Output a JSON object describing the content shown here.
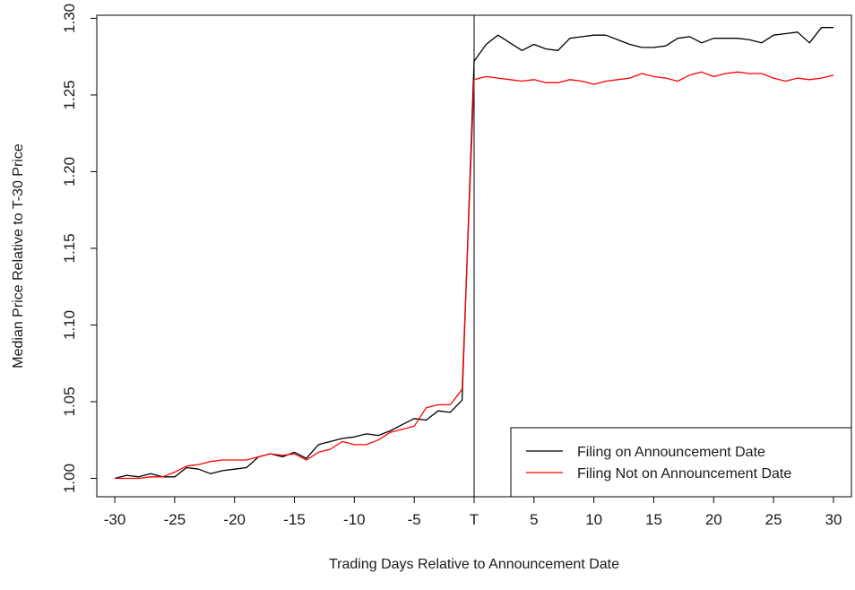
{
  "chart_data": {
    "type": "line",
    "xlabel": "Trading Days Relative to Announcement Date",
    "ylabel": "Median Price Relative to T-30 Price",
    "xlim": [
      -31.5,
      31.5
    ],
    "ylim": [
      0.988,
      1.302
    ],
    "x_ticks": [
      -30,
      -25,
      -20,
      -15,
      -10,
      -5,
      0,
      5,
      10,
      15,
      20,
      25,
      30
    ],
    "x_tick_labels": [
      "-30",
      "-25",
      "-20",
      "-15",
      "-10",
      "-5",
      "T",
      "5",
      "10",
      "15",
      "20",
      "25",
      "30"
    ],
    "y_ticks": [
      1.0,
      1.05,
      1.1,
      1.15,
      1.2,
      1.25,
      1.3
    ],
    "y_tick_labels": [
      "1.00",
      "1.05",
      "1.10",
      "1.15",
      "1.20",
      "1.25",
      "1.30"
    ],
    "vline_x": 0,
    "legend_position": "bottom-right",
    "x": [
      -30,
      -29,
      -28,
      -27,
      -26,
      -25,
      -24,
      -23,
      -22,
      -21,
      -20,
      -19,
      -18,
      -17,
      -16,
      -15,
      -14,
      -13,
      -12,
      -11,
      -10,
      -9,
      -8,
      -7,
      -6,
      -5,
      -4,
      -3,
      -2,
      -1,
      0,
      1,
      2,
      3,
      4,
      5,
      6,
      7,
      8,
      9,
      10,
      11,
      12,
      13,
      14,
      15,
      16,
      17,
      18,
      19,
      20,
      21,
      22,
      23,
      24,
      25,
      26,
      27,
      28,
      29,
      30
    ],
    "series": [
      {
        "name": "Filing on Announcement Date",
        "color": "#000000",
        "values": [
          1.0,
          1.002,
          1.001,
          1.003,
          1.001,
          1.001,
          1.007,
          1.006,
          1.003,
          1.005,
          1.006,
          1.007,
          1.014,
          1.016,
          1.014,
          1.017,
          1.013,
          1.022,
          1.024,
          1.026,
          1.027,
          1.029,
          1.028,
          1.031,
          1.035,
          1.039,
          1.038,
          1.044,
          1.043,
          1.051,
          1.272,
          1.283,
          1.289,
          1.284,
          1.279,
          1.283,
          1.28,
          1.279,
          1.287,
          1.288,
          1.289,
          1.289,
          1.286,
          1.283,
          1.281,
          1.281,
          1.282,
          1.287,
          1.288,
          1.284,
          1.287,
          1.287,
          1.287,
          1.286,
          1.284,
          1.289,
          1.29,
          1.291,
          1.284,
          1.294,
          1.294
        ]
      },
      {
        "name": "Filing Not on Announcement Date",
        "color": "#ff0000",
        "values": [
          1.0,
          1.0,
          1.0,
          1.001,
          1.001,
          1.004,
          1.008,
          1.009,
          1.011,
          1.012,
          1.012,
          1.012,
          1.014,
          1.016,
          1.015,
          1.016,
          1.012,
          1.017,
          1.019,
          1.024,
          1.022,
          1.022,
          1.025,
          1.03,
          1.032,
          1.034,
          1.046,
          1.048,
          1.048,
          1.058,
          1.26,
          1.262,
          1.261,
          1.26,
          1.259,
          1.26,
          1.258,
          1.258,
          1.26,
          1.259,
          1.257,
          1.259,
          1.26,
          1.261,
          1.264,
          1.262,
          1.261,
          1.259,
          1.263,
          1.265,
          1.262,
          1.264,
          1.265,
          1.264,
          1.264,
          1.261,
          1.259,
          1.261,
          1.26,
          1.261,
          1.263
        ]
      }
    ]
  }
}
